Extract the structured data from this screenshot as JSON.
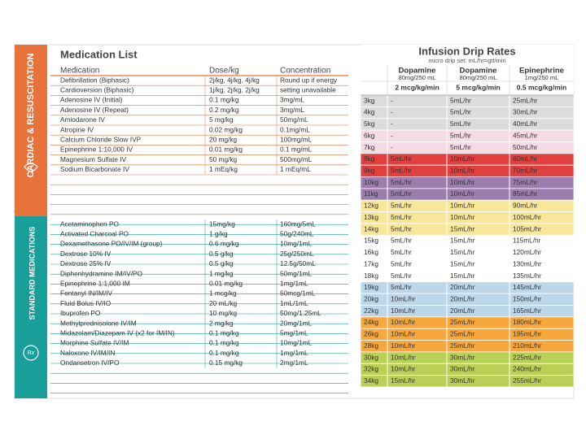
{
  "medication_list": {
    "title": "Medication List",
    "columns": [
      "Medication",
      "Dose/kg",
      "Concentration"
    ],
    "sections": [
      {
        "label": "CARDIAC & RESUSCITATION",
        "rows": [
          [
            "Defibrillation (Biphasic)",
            "2j/kg, 4j/kg, 4j/kg",
            "Round up if energy"
          ],
          [
            "Cardioversion (Biphasic)",
            "1j/kg, 2j/kg, 2j/kg",
            "setting unavailable"
          ],
          [
            "Adenosine IV (Initial)",
            "0.1 mg/kg",
            "3mg/mL"
          ],
          [
            "Adenosine IV (Repeat)",
            "0.2 mg/kg",
            "3mg/mL"
          ],
          [
            "Amiodarone IV",
            "5 mg/kg",
            "50mg/mL"
          ],
          [
            "Atropine IV",
            "0.02 mg/kg",
            "0.1mg/mL"
          ],
          [
            "Calcium Chloride Slow IVP",
            "20 mg/kg",
            "100mg/mL"
          ],
          [
            "Epinephrine 1:10,000 IV",
            "0.01 mg/kg",
            "0.1 mg/mL"
          ],
          [
            "Magnesium Sulfate IV",
            "50 mg/kg",
            "500mg/mL"
          ],
          [
            "Sodium Bicarbonate IV",
            "1 mEq/kg",
            "1 mEq/mL"
          ]
        ]
      },
      {
        "label": "STANDARD MEDICATIONS",
        "rows": [
          [
            "Acetaminophen PO",
            "15mg/kg",
            "160mg/5mL"
          ],
          [
            "Activated Charcoal PO",
            "1 g/kg",
            "50g/240mL"
          ],
          [
            "Dexamethasone PO/IV/IM (group)",
            "0.6 mg/kg",
            "10mg/1mL"
          ],
          [
            "Dextrose 10% IV",
            "0.5 g/kg",
            "25g/250mL"
          ],
          [
            "Dextrose 25% IV",
            "0.5 g/kg",
            "12.5g/50mL"
          ],
          [
            "Diphenhydramine IM/IV/PO",
            "1 mg/kg",
            "50mg/1mL"
          ],
          [
            "Epinephrine 1:1,000 IM",
            "0.01 mg/kg",
            "1mg/1mL"
          ],
          [
            "Fentanyl IN/IM/IV",
            "1 mcg/kg",
            "50mcg/1mL"
          ],
          [
            "Fluid Bolus IV/IO",
            "20 mL/kg",
            "1mL/1mL"
          ],
          [
            "Ibuprofen PO",
            "10 mg/kg",
            "50mg/1.25mL"
          ],
          [
            "Methylprednisolone IV/IM",
            "2 mg/kg",
            "20mg/1mL"
          ],
          [
            "Midazolam/Diazepam IV (x2 for IM/IN)",
            "0.1 mg/kg",
            "5mg/1mL"
          ],
          [
            "Morphine Sulfate IV/IM",
            "0.1 mg/kg",
            "10mg/1mL"
          ],
          [
            "Naloxone IV/IM/IN",
            "0.1 mg/kg",
            "1mg/1mL"
          ],
          [
            "Ondansetron IV/PO",
            "0.15 mg/kg",
            "2mg/1mL"
          ]
        ]
      }
    ]
  },
  "infusion": {
    "title": "Infusion Drip Rates",
    "subtitle": "micro drip set: mL/hr=gtt/min",
    "columns": [
      {
        "drug": "Dopamine",
        "concentration": "80mg/250 mL",
        "dose": "2 mcg/kg/min"
      },
      {
        "drug": "Dopamine",
        "concentration": "80mg/250 mL",
        "dose": "5 mcg/kg/min"
      },
      {
        "drug": "Epinephrine",
        "concentration": "1mg/250 mL",
        "dose": "0.5 mcg/kg/min"
      }
    ],
    "rows": [
      [
        "3kg",
        "-",
        "5mL/hr",
        "25mL/hr"
      ],
      [
        "4kg",
        "-",
        "5mL/hr",
        "30mL/hr"
      ],
      [
        "5kg",
        "-",
        "5mL/hr",
        "40mL/hr"
      ],
      [
        "6kg",
        "-",
        "5mL/hr",
        "45mL/hr"
      ],
      [
        "7kg",
        "-",
        "5mL/hr",
        "50mL/hr"
      ],
      [
        "8kg",
        "5mL/hr",
        "10mL/hr",
        "60mL/hr"
      ],
      [
        "9kg",
        "5mL/hr",
        "10mL/hr",
        "70mL/hr"
      ],
      [
        "10kg",
        "5mL/hr",
        "10mL/hr",
        "75mL/hr"
      ],
      [
        "11kg",
        "5mL/hr",
        "10mL/hr",
        "85mL/hr"
      ],
      [
        "12kg",
        "5mL/hr",
        "10mL/hr",
        "90mL/hr"
      ],
      [
        "13kg",
        "5mL/hr",
        "10mL/hr",
        "100mL/hr"
      ],
      [
        "14kg",
        "5mL/hr",
        "15mL/hr",
        "105mL/hr"
      ],
      [
        "15kg",
        "5mL/hr",
        "15mL/hr",
        "115mL/hr"
      ],
      [
        "16kg",
        "5mL/hr",
        "15mL/hr",
        "120mL/hr"
      ],
      [
        "17kg",
        "5mL/hr",
        "15mL/hr",
        "130mL/hr"
      ],
      [
        "18kg",
        "5mL/hr",
        "15mL/hr",
        "135mL/hr"
      ],
      [
        "19kg",
        "5mL/hr",
        "20mL/hr",
        "145mL/hr"
      ],
      [
        "20kg",
        "10mL/hr",
        "20mL/hr",
        "150mL/hr"
      ],
      [
        "22kg",
        "10mL/hr",
        "20mL/hr",
        "165mL/hr"
      ],
      [
        "24kg",
        "10mL/hr",
        "25mL/hr",
        "180mL/hr"
      ],
      [
        "26kg",
        "10mL/hr",
        "25mL/hr",
        "195mL/hr"
      ],
      [
        "28kg",
        "10mL/hr",
        "25mL/hr",
        "210mL/hr"
      ],
      [
        "30kg",
        "10mL/hr",
        "30mL/hr",
        "225mL/hr"
      ],
      [
        "32kg",
        "10mL/hr",
        "30mL/hr",
        "240mL/hr"
      ],
      [
        "34kg",
        "15mL/hr",
        "30mL/hr",
        "255mL/hr"
      ]
    ]
  }
}
